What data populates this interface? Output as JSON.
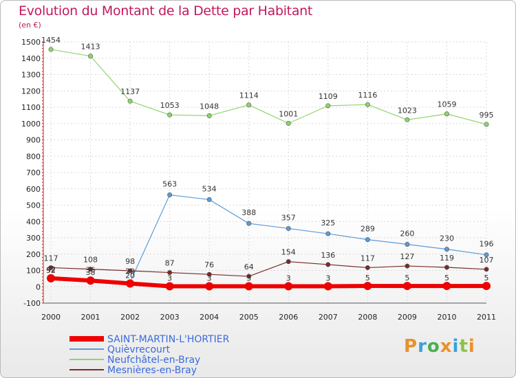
{
  "title": "Evolution du Montant de la Dette par Habitant",
  "unit": "(en €)",
  "logo": "Proxiti",
  "colors": {
    "SAINT-MARTIN-L'HORTIER": "#ee0000",
    "Quièvrecourt": "#5b9bd5",
    "Neufchâtel-en-Bray": "#8fd36b",
    "Mesnières-en-Bray": "#7a2a2a"
  },
  "chart_data": {
    "type": "line",
    "x": [
      "2000",
      "2001",
      "2002",
      "2003",
      "2004",
      "2005",
      "2006",
      "2007",
      "2008",
      "2009",
      "2010",
      "2011"
    ],
    "ylim": [
      -100,
      1500
    ],
    "yticks": [
      -100,
      0,
      100,
      200,
      300,
      400,
      500,
      600,
      700,
      800,
      900,
      1000,
      1100,
      1200,
      1300,
      1400,
      1500
    ],
    "grid": true,
    "legend_position": "bottom-left",
    "series": [
      {
        "name": "SAINT-MARTIN-L'HORTIER",
        "values": [
          52,
          38,
          20,
          3,
          3,
          3,
          3,
          3,
          5,
          5,
          5,
          5
        ],
        "labels": [
          "52",
          "38",
          "20",
          "3",
          "3",
          "3",
          "3",
          "3",
          "5",
          "5",
          "5",
          "5"
        ]
      },
      {
        "name": "Quièvrecourt",
        "values": [
          42,
          36,
          29,
          563,
          534,
          388,
          357,
          325,
          289,
          260,
          230,
          196
        ],
        "labels": [
          "42",
          "36",
          "29",
          "563",
          "534",
          "388",
          "357",
          "325",
          "289",
          "260",
          "230",
          "196"
        ]
      },
      {
        "name": "Neufchâtel-en-Bray",
        "values": [
          1454,
          1413,
          1137,
          1053,
          1048,
          1114,
          1001,
          1109,
          1116,
          1023,
          1059,
          995
        ],
        "labels": [
          "1454",
          "1413",
          "1137",
          "1053",
          "1048",
          "1114",
          "1001",
          "1109",
          "1116",
          "1023",
          "1059",
          "995"
        ]
      },
      {
        "name": "Mesnières-en-Bray",
        "values": [
          117,
          108,
          98,
          87,
          76,
          64,
          154,
          136,
          117,
          127,
          119,
          107
        ],
        "labels": [
          "117",
          "108",
          "98",
          "87",
          "76",
          "64",
          "154",
          "136",
          "117",
          "127",
          "119",
          "107"
        ]
      }
    ]
  }
}
